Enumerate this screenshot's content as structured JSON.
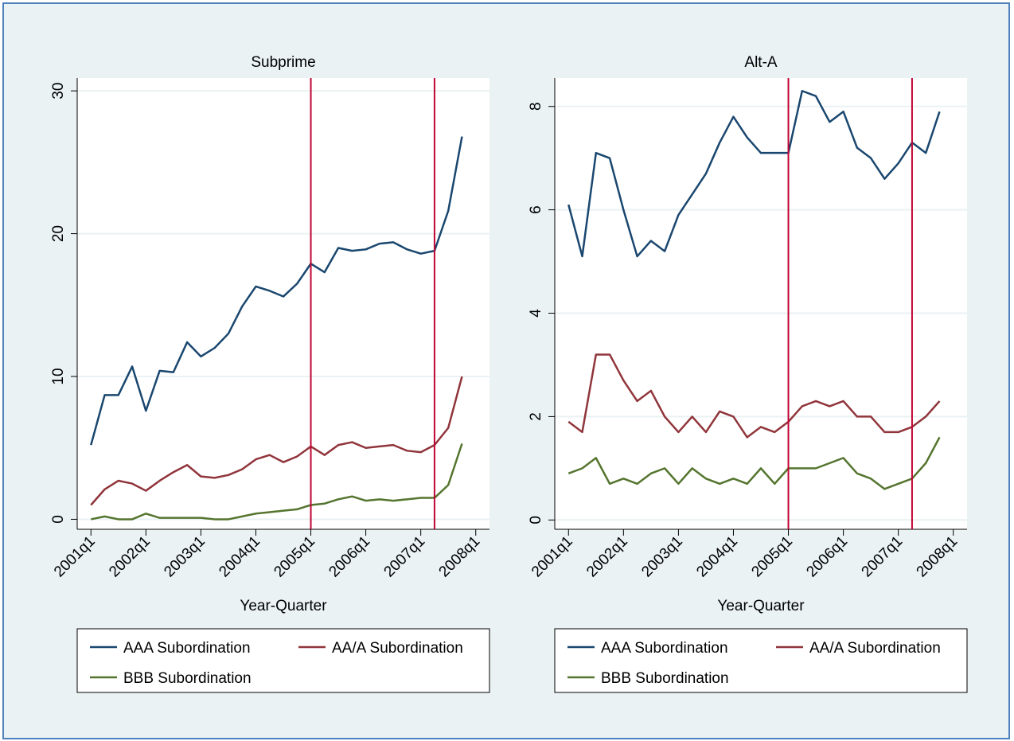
{
  "chart_data": [
    {
      "type": "line",
      "title": "Subprime",
      "x_label": "Year-Quarter",
      "x": [
        "2001q1",
        "2001q2",
        "2001q3",
        "2001q4",
        "2002q1",
        "2002q2",
        "2002q3",
        "2002q4",
        "2003q1",
        "2003q2",
        "2003q3",
        "2003q4",
        "2004q1",
        "2004q2",
        "2004q3",
        "2004q4",
        "2005q1",
        "2005q2",
        "2005q3",
        "2005q4",
        "2006q1",
        "2006q2",
        "2006q3",
        "2006q4",
        "2007q1",
        "2007q2",
        "2007q3",
        "2007q4"
      ],
      "xlim": [
        "2000q4",
        "2008q2"
      ],
      "xticks": [
        "2001q1",
        "2002q1",
        "2003q1",
        "2004q1",
        "2005q1",
        "2006q1",
        "2007q1",
        "2008q1"
      ],
      "ylim": [
        -0.7,
        30.9
      ],
      "yticks": [
        0,
        10,
        20,
        30
      ],
      "grid": true,
      "vlines": [
        "2005q1",
        "2007q2"
      ],
      "vline_color": "#c10534",
      "series": [
        {
          "name": "AAA Subordination",
          "color": "#1a476f",
          "values": [
            5.2,
            8.7,
            8.7,
            10.7,
            7.6,
            10.4,
            10.3,
            12.4,
            11.4,
            12.0,
            13.0,
            14.9,
            16.3,
            16.0,
            15.6,
            16.5,
            17.9,
            17.3,
            19.0,
            18.8,
            18.9,
            19.3,
            19.4,
            18.9,
            18.6,
            18.8,
            21.6,
            26.8
          ]
        },
        {
          "name": "AA/A Subordination",
          "color": "#90353b",
          "values": [
            1.0,
            2.1,
            2.7,
            2.5,
            2.0,
            2.7,
            3.3,
            3.8,
            3.0,
            2.9,
            3.1,
            3.5,
            4.2,
            4.5,
            4.0,
            4.4,
            5.1,
            4.5,
            5.2,
            5.4,
            5.0,
            5.1,
            5.2,
            4.8,
            4.7,
            5.2,
            6.4,
            10.0
          ]
        },
        {
          "name": "BBB Subordination",
          "color": "#55752f",
          "values": [
            0.0,
            0.2,
            0.0,
            0.0,
            0.4,
            0.1,
            0.1,
            0.1,
            0.1,
            0.0,
            0.0,
            0.2,
            0.4,
            0.5,
            0.6,
            0.7,
            1.0,
            1.1,
            1.4,
            1.6,
            1.3,
            1.4,
            1.3,
            1.4,
            1.5,
            1.5,
            2.4,
            5.3
          ]
        }
      ],
      "legend": "bottom"
    },
    {
      "type": "line",
      "title": "Alt-A",
      "x_label": "Year-Quarter",
      "x": [
        "2001q1",
        "2001q2",
        "2001q3",
        "2001q4",
        "2002q1",
        "2002q2",
        "2002q3",
        "2002q4",
        "2003q1",
        "2003q2",
        "2003q3",
        "2003q4",
        "2004q1",
        "2004q2",
        "2004q3",
        "2004q4",
        "2005q1",
        "2005q2",
        "2005q3",
        "2005q4",
        "2006q1",
        "2006q2",
        "2006q3",
        "2006q4",
        "2007q1",
        "2007q2",
        "2007q3",
        "2007q4"
      ],
      "xlim": [
        "2000q4",
        "2008q2"
      ],
      "xticks": [
        "2001q1",
        "2002q1",
        "2003q1",
        "2004q1",
        "2005q1",
        "2006q1",
        "2007q1",
        "2008q1"
      ],
      "ylim": [
        -0.18,
        8.55
      ],
      "yticks": [
        0,
        2,
        4,
        6,
        8
      ],
      "grid": true,
      "vlines": [
        "2005q1",
        "2007q2"
      ],
      "vline_color": "#c10534",
      "series": [
        {
          "name": "AAA Subordination",
          "color": "#1a476f",
          "values": [
            6.1,
            5.1,
            7.1,
            7.0,
            6.0,
            5.1,
            5.4,
            5.2,
            5.9,
            6.3,
            6.7,
            7.3,
            7.8,
            7.4,
            7.1,
            7.1,
            7.1,
            8.3,
            8.2,
            7.7,
            7.9,
            7.2,
            7.0,
            6.6,
            6.9,
            7.3,
            7.1,
            7.9
          ]
        },
        {
          "name": "AA/A Subordination",
          "color": "#90353b",
          "values": [
            1.9,
            1.7,
            3.2,
            3.2,
            2.7,
            2.3,
            2.5,
            2.0,
            1.7,
            2.0,
            1.7,
            2.1,
            2.0,
            1.6,
            1.8,
            1.7,
            1.9,
            2.2,
            2.3,
            2.2,
            2.3,
            2.0,
            2.0,
            1.7,
            1.7,
            1.8,
            2.0,
            2.3
          ]
        },
        {
          "name": "BBB Subordination",
          "color": "#55752f",
          "values": [
            0.9,
            1.0,
            1.2,
            0.7,
            0.8,
            0.7,
            0.9,
            1.0,
            0.7,
            1.0,
            0.8,
            0.7,
            0.8,
            0.7,
            1.0,
            0.7,
            1.0,
            1.0,
            1.0,
            1.1,
            1.2,
            0.9,
            0.8,
            0.6,
            0.7,
            0.8,
            1.1,
            1.6
          ]
        }
      ],
      "legend": "bottom"
    }
  ]
}
